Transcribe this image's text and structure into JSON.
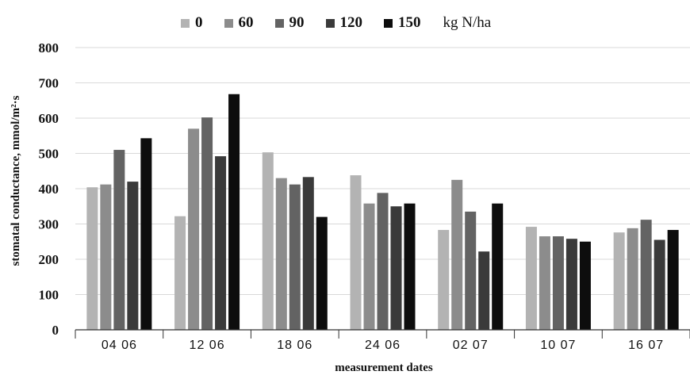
{
  "chart_data": {
    "type": "bar",
    "title": "",
    "xlabel": "measurement dates",
    "ylabel": "stomatal conductance, mmol/m²·s",
    "ylim": [
      0,
      800
    ],
    "yticks": [
      0,
      100,
      200,
      300,
      400,
      500,
      600,
      700,
      800
    ],
    "grid": "horizontal",
    "legend": "top",
    "legend_unit": "kg N/ha",
    "categories": [
      "04 06",
      "12 06",
      "18 06",
      "24 06",
      "02 07",
      "10 07",
      "16 07"
    ],
    "series": [
      {
        "name": "0",
        "color": "#b3b3b3",
        "values": [
          404,
          322,
          503,
          438,
          283,
          292,
          276
        ]
      },
      {
        "name": "60",
        "color": "#8c8c8c",
        "values": [
          412,
          570,
          430,
          358,
          425,
          265,
          288
        ]
      },
      {
        "name": "90",
        "color": "#636363",
        "values": [
          510,
          602,
          412,
          388,
          335,
          265,
          312
        ]
      },
      {
        "name": "120",
        "color": "#3a3a3a",
        "values": [
          420,
          492,
          433,
          350,
          222,
          258,
          255
        ]
      },
      {
        "name": "150",
        "color": "#0d0d0d",
        "values": [
          543,
          668,
          320,
          358,
          358,
          250,
          283
        ]
      }
    ]
  }
}
